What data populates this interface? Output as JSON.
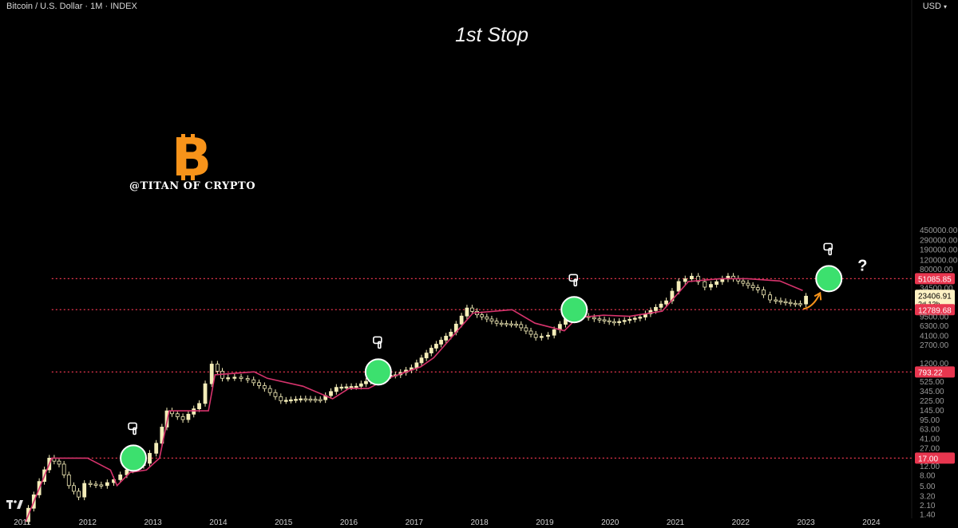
{
  "header": {
    "symbol": "Bitcoin / U.S. Dollar · 1M · INDEX",
    "currency": "USD",
    "currency_icon": "chevron-down-icon"
  },
  "title": "1st Stop",
  "watermark": {
    "logo_icon": "bitcoin-logo-icon",
    "text": "@TITAN OF CRYPTO"
  },
  "colors": {
    "background": "#000000",
    "candle": "#f4edb8",
    "ma_line": "#d6336c",
    "support_line": "#e8364f",
    "marker": "#3ce06e",
    "arrow": "#f7931a"
  },
  "chart_data": {
    "type": "candlestick",
    "title": "1st Stop",
    "interval": "1M",
    "y_scale": "log",
    "ylim": [
      1.0,
      600000
    ],
    "xlim": [
      2011.0,
      2024.5
    ],
    "x_ticks": [
      "2011",
      "2012",
      "2013",
      "2014",
      "2015",
      "2016",
      "2017",
      "2018",
      "2019",
      "2020",
      "2021",
      "2022",
      "2023",
      "2024"
    ],
    "y_ticks": [
      "450000.00",
      "290000.00",
      "190000.00",
      "120000.00",
      "80000.00",
      "51085.85",
      "34500.00",
      "23406.91",
      "14500.00",
      "12789.68",
      "9500.00",
      "6300.00",
      "4100.00",
      "2700.00",
      "1200.00",
      "793.22",
      "525.00",
      "345.00",
      "225.00",
      "145.00",
      "95.00",
      "63.00",
      "41.00",
      "27.00",
      "17.00",
      "12.00",
      "8.00",
      "5.00",
      "3.20",
      "2.10",
      "1.40"
    ],
    "price_series": [
      {
        "t": 2011.05,
        "c": 1.0
      },
      {
        "t": 2011.3,
        "c": 6
      },
      {
        "t": 2011.45,
        "c": 17
      },
      {
        "t": 2011.6,
        "c": 13
      },
      {
        "t": 2011.75,
        "c": 5
      },
      {
        "t": 2011.9,
        "c": 3
      },
      {
        "t": 2012.0,
        "c": 5.5
      },
      {
        "t": 2012.25,
        "c": 5
      },
      {
        "t": 2012.45,
        "c": 6.5
      },
      {
        "t": 2012.65,
        "c": 10
      },
      {
        "t": 2012.9,
        "c": 13.5
      },
      {
        "t": 2013.1,
        "c": 33
      },
      {
        "t": 2013.25,
        "c": 140
      },
      {
        "t": 2013.5,
        "c": 95
      },
      {
        "t": 2013.75,
        "c": 195
      },
      {
        "t": 2013.95,
        "c": 1130
      },
      {
        "t": 2014.1,
        "c": 600
      },
      {
        "t": 2014.3,
        "c": 630
      },
      {
        "t": 2014.5,
        "c": 560
      },
      {
        "t": 2014.75,
        "c": 380
      },
      {
        "t": 2015.0,
        "c": 220
      },
      {
        "t": 2015.3,
        "c": 240
      },
      {
        "t": 2015.6,
        "c": 230
      },
      {
        "t": 2015.85,
        "c": 400
      },
      {
        "t": 2016.15,
        "c": 420
      },
      {
        "t": 2016.45,
        "c": 650
      },
      {
        "t": 2016.75,
        "c": 700
      },
      {
        "t": 2017.0,
        "c": 960
      },
      {
        "t": 2017.3,
        "c": 2300
      },
      {
        "t": 2017.6,
        "c": 4700
      },
      {
        "t": 2017.85,
        "c": 13800
      },
      {
        "t": 2018.0,
        "c": 10200
      },
      {
        "t": 2018.3,
        "c": 7000
      },
      {
        "t": 2018.6,
        "c": 6600
      },
      {
        "t": 2018.9,
        "c": 3700
      },
      {
        "t": 2019.1,
        "c": 4100
      },
      {
        "t": 2019.45,
        "c": 10800
      },
      {
        "t": 2019.8,
        "c": 8500
      },
      {
        "t": 2020.1,
        "c": 7200
      },
      {
        "t": 2020.5,
        "c": 9200
      },
      {
        "t": 2020.9,
        "c": 19000
      },
      {
        "t": 2021.1,
        "c": 45000
      },
      {
        "t": 2021.3,
        "c": 57000
      },
      {
        "t": 2021.5,
        "c": 35000
      },
      {
        "t": 2021.85,
        "c": 57000
      },
      {
        "t": 2022.0,
        "c": 46000
      },
      {
        "t": 2022.3,
        "c": 31000
      },
      {
        "t": 2022.5,
        "c": 19800
      },
      {
        "t": 2022.8,
        "c": 17000
      },
      {
        "t": 2022.95,
        "c": 16500
      },
      {
        "t": 2023.05,
        "c": 23406.91
      }
    ],
    "ma_series": [
      {
        "t": 2011.05,
        "v": 1.0
      },
      {
        "t": 2011.45,
        "v": 17
      },
      {
        "t": 2012.0,
        "v": 17
      },
      {
        "t": 2012.35,
        "v": 10
      },
      {
        "t": 2012.45,
        "v": 5
      },
      {
        "t": 2012.65,
        "v": 9
      },
      {
        "t": 2012.9,
        "v": 10
      },
      {
        "t": 2013.1,
        "v": 17
      },
      {
        "t": 2013.25,
        "v": 140
      },
      {
        "t": 2013.85,
        "v": 140
      },
      {
        "t": 2013.95,
        "v": 700
      },
      {
        "t": 2014.55,
        "v": 800
      },
      {
        "t": 2014.75,
        "v": 600
      },
      {
        "t": 2015.3,
        "v": 420
      },
      {
        "t": 2015.75,
        "v": 240
      },
      {
        "t": 2016.0,
        "v": 380
      },
      {
        "t": 2016.3,
        "v": 380
      },
      {
        "t": 2016.6,
        "v": 600
      },
      {
        "t": 2017.1,
        "v": 1000
      },
      {
        "t": 2017.3,
        "v": 1500
      },
      {
        "t": 2017.9,
        "v": 11000
      },
      {
        "t": 2018.5,
        "v": 12800
      },
      {
        "t": 2018.85,
        "v": 7000
      },
      {
        "t": 2019.3,
        "v": 5000
      },
      {
        "t": 2019.5,
        "v": 9000
      },
      {
        "t": 2019.9,
        "v": 10000
      },
      {
        "t": 2020.3,
        "v": 9500
      },
      {
        "t": 2020.8,
        "v": 12000
      },
      {
        "t": 2021.2,
        "v": 45000
      },
      {
        "t": 2021.7,
        "v": 51000
      },
      {
        "t": 2022.1,
        "v": 51085.85
      },
      {
        "t": 2022.6,
        "v": 46000
      },
      {
        "t": 2022.95,
        "v": 30000
      }
    ],
    "levels": [
      {
        "value": 17.0,
        "label": "17.00"
      },
      {
        "value": 793.22,
        "label": "793.22"
      },
      {
        "value": 12789.68,
        "label": "12789.68"
      },
      {
        "value": 51085.85,
        "label": "51085.85"
      }
    ],
    "current_price": {
      "value": 23406.91,
      "label": "23406.91",
      "countdown": "2d 13h"
    },
    "markers": [
      {
        "t": 2012.7,
        "v": 17,
        "target": false
      },
      {
        "t": 2016.45,
        "v": 793.22,
        "target": false
      },
      {
        "t": 2019.45,
        "v": 12789.68,
        "target": false
      },
      {
        "t": 2023.35,
        "v": 51085.85,
        "target": true
      }
    ],
    "question_mark": "?"
  }
}
